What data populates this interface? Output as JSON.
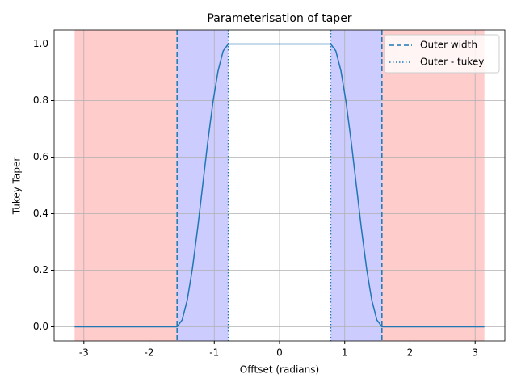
{
  "chart_data": {
    "type": "line",
    "title": "Parameterisation of taper",
    "xlabel": "Offtset (radians)",
    "ylabel": "Tukey Taper",
    "xlim": [
      -3.4558,
      3.4558
    ],
    "ylim": [
      -0.05,
      1.05
    ],
    "xticks": [
      -3,
      -2,
      -1,
      0,
      1,
      2,
      3
    ],
    "yticks": [
      {
        "value": 0,
        "label": "0.0"
      },
      {
        "value": 0.2,
        "label": "0.2"
      },
      {
        "value": 0.4,
        "label": "0.4"
      },
      {
        "value": 0.6,
        "label": "0.6"
      },
      {
        "value": 0.8,
        "label": "0.8"
      },
      {
        "value": 1,
        "label": "1.0"
      }
    ],
    "grid": true,
    "legend": "upper right",
    "spans": [
      {
        "from": -3.1416,
        "to": -1.5708,
        "color": "#ffcccc"
      },
      {
        "from": 1.5708,
        "to": 3.1416,
        "color": "#ffcccc"
      },
      {
        "from": -1.5708,
        "to": -0.7854,
        "color": "#ccccff"
      },
      {
        "from": 0.7854,
        "to": 1.5708,
        "color": "#ccccff"
      }
    ],
    "curve": {
      "color": "#1f77b4",
      "x": [
        -3.1416,
        -1.5708,
        -1.4923,
        -1.4137,
        -1.3352,
        -1.2566,
        -1.1781,
        -1.0996,
        -1.021,
        -0.9425,
        -0.8639,
        -0.7854,
        0.7854,
        0.8639,
        0.9425,
        1.021,
        1.0996,
        1.1781,
        1.2566,
        1.3352,
        1.4137,
        1.4923,
        1.5708,
        3.1416
      ],
      "values": [
        0,
        0,
        0.0245,
        0.0955,
        0.2061,
        0.3455,
        0.5,
        0.6545,
        0.7939,
        0.9045,
        0.9755,
        1,
        1,
        0.9755,
        0.9045,
        0.7939,
        0.6545,
        0.5,
        0.3455,
        0.2061,
        0.0955,
        0.0245,
        0,
        0
      ]
    },
    "series": [
      {
        "name": "Outer width",
        "color": "#1f77b4",
        "style": "dashed",
        "x": [
          -1.5708,
          1.5708
        ]
      },
      {
        "name": "Outer - tukey",
        "color": "#1f77b4",
        "style": "dotted",
        "x": [
          -0.7854,
          0.7854
        ]
      }
    ]
  }
}
